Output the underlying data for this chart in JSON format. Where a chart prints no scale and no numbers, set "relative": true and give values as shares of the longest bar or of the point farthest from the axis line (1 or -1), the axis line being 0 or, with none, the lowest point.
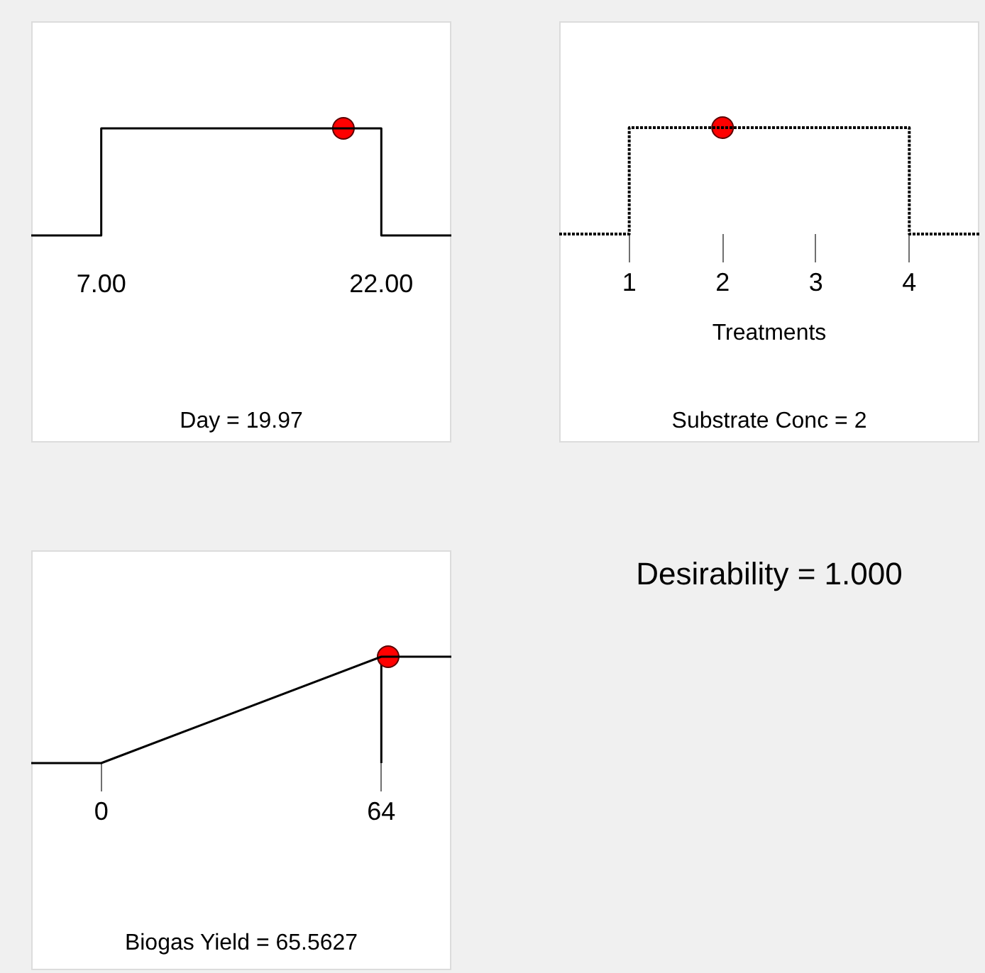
{
  "chart_data": [
    {
      "type": "line",
      "title": "Day = 19.97",
      "relative": true,
      "xlim": [
        3.25,
        25.75
      ],
      "xticks": [
        {
          "value": 7,
          "label": "7.00"
        },
        {
          "value": 22,
          "label": "22.00"
        }
      ],
      "series": [
        {
          "type": "line",
          "color": "#000000",
          "marker": "none",
          "line_style": "solid",
          "x": [
            3.25,
            7,
            7,
            22,
            22,
            25.75
          ],
          "values": [
            0,
            0,
            1,
            1,
            0,
            0
          ]
        },
        {
          "type": "scatter",
          "color": "#ff0000",
          "marker": "circle",
          "x": [
            19.97
          ],
          "values": [
            1
          ]
        }
      ]
    },
    {
      "type": "line",
      "title": "Substrate Conc = 2",
      "xlabel": "Treatments",
      "relative": true,
      "xlim": [
        0.25,
        4.75
      ],
      "xticks": [
        1,
        2,
        3,
        4
      ],
      "series": [
        {
          "type": "line",
          "color": "#000000",
          "marker": "none",
          "line_style": "dotted",
          "x": [
            0.25,
            1,
            1,
            4,
            4,
            4.75
          ],
          "values": [
            0,
            0,
            1,
            1,
            0,
            0
          ]
        },
        {
          "type": "scatter",
          "color": "#ff0000",
          "marker": "circle",
          "x": [
            2
          ],
          "values": [
            1
          ]
        }
      ]
    },
    {
      "type": "line",
      "title": "Biogas Yield = 65.5627",
      "relative": true,
      "xlim": [
        -16,
        80
      ],
      "xticks": [
        0,
        64
      ],
      "ref_lines": [
        {
          "axis": "x",
          "value": 64,
          "color": "#000000",
          "line_style": "solid"
        }
      ],
      "series": [
        {
          "type": "line",
          "color": "#000000",
          "marker": "none",
          "line_style": "solid",
          "x": [
            -16,
            0,
            64,
            80
          ],
          "values": [
            0,
            0,
            1,
            1
          ]
        },
        {
          "type": "scatter",
          "color": "#ff0000",
          "marker": "circle",
          "x": [
            65.5627
          ],
          "values": [
            1
          ]
        }
      ]
    },
    {
      "type": "other",
      "title": "Desirability = 1.000"
    }
  ]
}
